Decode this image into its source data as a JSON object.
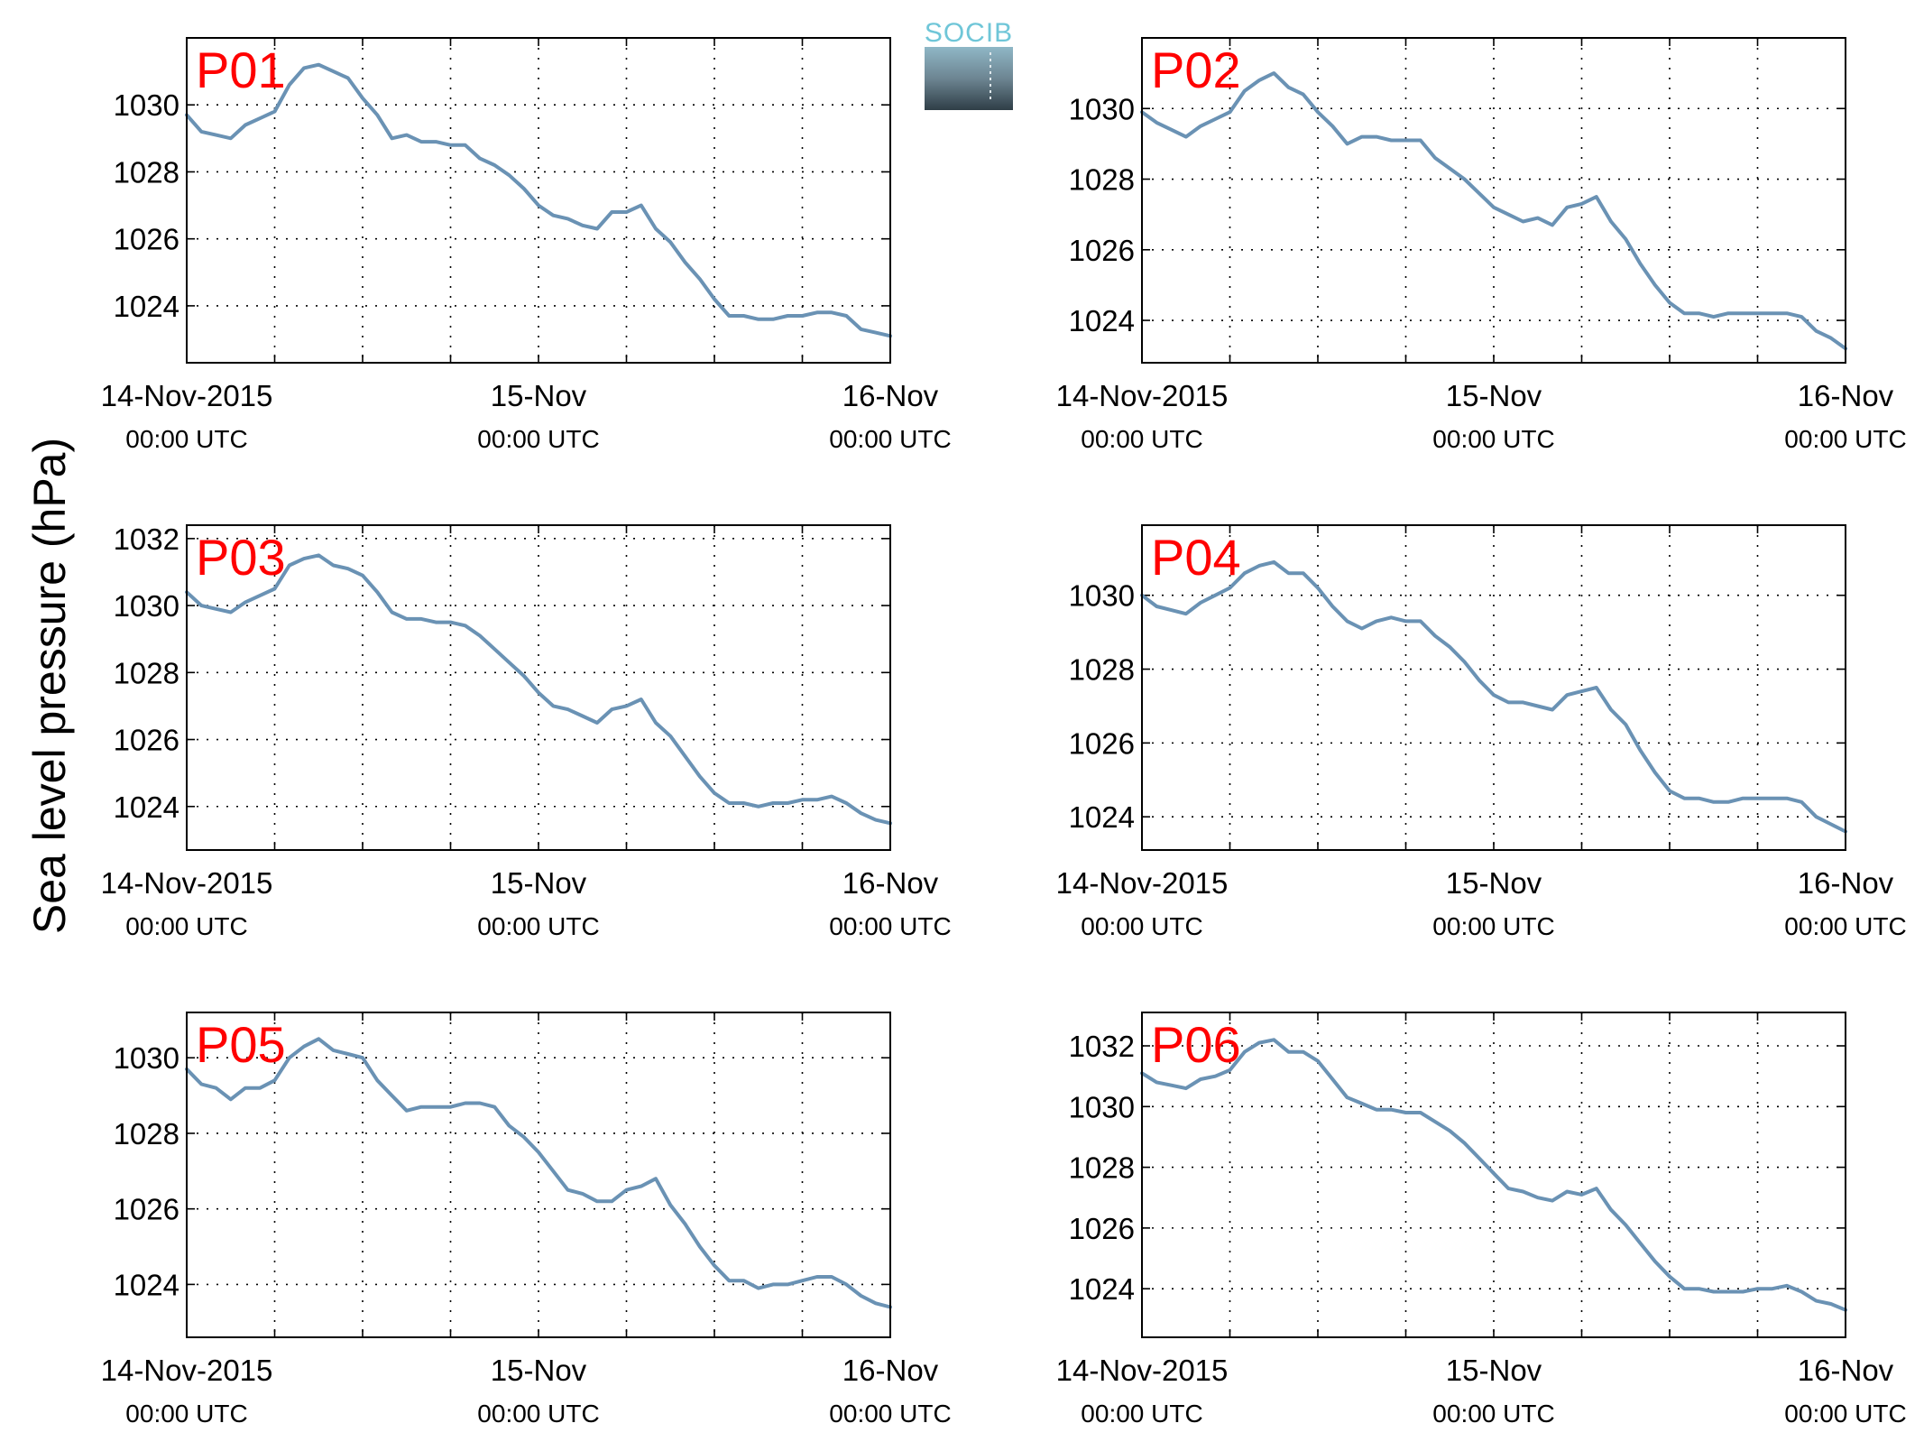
{
  "logo": {
    "text": "SOCIB"
  },
  "chart_data": {
    "type": "line",
    "ylabel": "Sea level pressure (hPa)",
    "x_ticks": [
      {
        "t": 0,
        "main": "14-Nov-2015",
        "sub": "00:00 UTC"
      },
      {
        "t": 24,
        "main": "15-Nov",
        "sub": "00:00 UTC"
      },
      {
        "t": 48,
        "main": "16-Nov",
        "sub": "00:00 UTC"
      }
    ],
    "x_range_hours": [
      0,
      48
    ],
    "x_grid_hours": [
      6,
      12,
      18,
      24,
      30,
      36,
      42
    ],
    "grid": true,
    "series_color": "#6a92b4",
    "label_color": "#ff0000",
    "panels": [
      {
        "label": "P01",
        "ylim": [
          1022.3,
          1032
        ],
        "yticks": [
          1024,
          1026,
          1028,
          1030
        ],
        "t": [
          0,
          1,
          2,
          3,
          4,
          5,
          6,
          7,
          8,
          9,
          10,
          11,
          12,
          13,
          14,
          15,
          16,
          17,
          18,
          19,
          20,
          21,
          22,
          23,
          24,
          25,
          26,
          27,
          28,
          29,
          30,
          31,
          32,
          33,
          34,
          35,
          36,
          37,
          38,
          39,
          40,
          41,
          42,
          43,
          44,
          45,
          46,
          47,
          48
        ],
        "values": [
          1029.7,
          1029.2,
          1029.1,
          1029.0,
          1029.4,
          1029.6,
          1029.8,
          1030.6,
          1031.1,
          1031.2,
          1031.0,
          1030.8,
          1030.2,
          1029.7,
          1029.0,
          1029.1,
          1028.9,
          1028.9,
          1028.8,
          1028.8,
          1028.4,
          1028.2,
          1027.9,
          1027.5,
          1027.0,
          1026.7,
          1026.6,
          1026.4,
          1026.3,
          1026.8,
          1026.8,
          1027.0,
          1026.3,
          1025.9,
          1025.3,
          1024.8,
          1024.2,
          1023.7,
          1023.7,
          1023.6,
          1023.6,
          1023.7,
          1023.7,
          1023.8,
          1023.8,
          1023.7,
          1023.3,
          1023.2,
          1023.1
        ]
      },
      {
        "label": "P02",
        "ylim": [
          1022.8,
          1032
        ],
        "yticks": [
          1024,
          1026,
          1028,
          1030
        ],
        "t": [
          0,
          1,
          2,
          3,
          4,
          5,
          6,
          7,
          8,
          9,
          10,
          11,
          12,
          13,
          14,
          15,
          16,
          17,
          18,
          19,
          20,
          21,
          22,
          23,
          24,
          25,
          26,
          27,
          28,
          29,
          30,
          31,
          32,
          33,
          34,
          35,
          36,
          37,
          38,
          39,
          40,
          41,
          42,
          43,
          44,
          45,
          46,
          47,
          48
        ],
        "values": [
          1029.9,
          1029.6,
          1029.4,
          1029.2,
          1029.5,
          1029.7,
          1029.9,
          1030.5,
          1030.8,
          1031.0,
          1030.6,
          1030.4,
          1029.9,
          1029.5,
          1029.0,
          1029.2,
          1029.2,
          1029.1,
          1029.1,
          1029.1,
          1028.6,
          1028.3,
          1028.0,
          1027.6,
          1027.2,
          1027.0,
          1026.8,
          1026.9,
          1026.7,
          1027.2,
          1027.3,
          1027.5,
          1026.8,
          1026.3,
          1025.6,
          1025.0,
          1024.5,
          1024.2,
          1024.2,
          1024.1,
          1024.2,
          1024.2,
          1024.2,
          1024.2,
          1024.2,
          1024.1,
          1023.7,
          1023.5,
          1023.2
        ]
      },
      {
        "label": "P03",
        "ylim": [
          1022.7,
          1032.4
        ],
        "yticks": [
          1024,
          1026,
          1028,
          1030,
          1032
        ],
        "t": [
          0,
          1,
          2,
          3,
          4,
          5,
          6,
          7,
          8,
          9,
          10,
          11,
          12,
          13,
          14,
          15,
          16,
          17,
          18,
          19,
          20,
          21,
          22,
          23,
          24,
          25,
          26,
          27,
          28,
          29,
          30,
          31,
          32,
          33,
          34,
          35,
          36,
          37,
          38,
          39,
          40,
          41,
          42,
          43,
          44,
          45,
          46,
          47,
          48
        ],
        "values": [
          1030.4,
          1030.0,
          1029.9,
          1029.8,
          1030.1,
          1030.3,
          1030.5,
          1031.2,
          1031.4,
          1031.5,
          1031.2,
          1031.1,
          1030.9,
          1030.4,
          1029.8,
          1029.6,
          1029.6,
          1029.5,
          1029.5,
          1029.4,
          1029.1,
          1028.7,
          1028.3,
          1027.9,
          1027.4,
          1027.0,
          1026.9,
          1026.7,
          1026.5,
          1026.9,
          1027.0,
          1027.2,
          1026.5,
          1026.1,
          1025.5,
          1024.9,
          1024.4,
          1024.1,
          1024.1,
          1024.0,
          1024.1,
          1024.1,
          1024.2,
          1024.2,
          1024.3,
          1024.1,
          1023.8,
          1023.6,
          1023.5
        ]
      },
      {
        "label": "P04",
        "ylim": [
          1023.1,
          1031.9
        ],
        "yticks": [
          1024,
          1026,
          1028,
          1030
        ],
        "t": [
          0,
          1,
          2,
          3,
          4,
          5,
          6,
          7,
          8,
          9,
          10,
          11,
          12,
          13,
          14,
          15,
          16,
          17,
          18,
          19,
          20,
          21,
          22,
          23,
          24,
          25,
          26,
          27,
          28,
          29,
          30,
          31,
          32,
          33,
          34,
          35,
          36,
          37,
          38,
          39,
          40,
          41,
          42,
          43,
          44,
          45,
          46,
          47,
          48
        ],
        "values": [
          1030.0,
          1029.7,
          1029.6,
          1029.5,
          1029.8,
          1030.0,
          1030.2,
          1030.6,
          1030.8,
          1030.9,
          1030.6,
          1030.6,
          1030.2,
          1029.7,
          1029.3,
          1029.1,
          1029.3,
          1029.4,
          1029.3,
          1029.3,
          1028.9,
          1028.6,
          1028.2,
          1027.7,
          1027.3,
          1027.1,
          1027.1,
          1027.0,
          1026.9,
          1027.3,
          1027.4,
          1027.5,
          1026.9,
          1026.5,
          1025.8,
          1025.2,
          1024.7,
          1024.5,
          1024.5,
          1024.4,
          1024.4,
          1024.5,
          1024.5,
          1024.5,
          1024.5,
          1024.4,
          1024.0,
          1023.8,
          1023.6
        ]
      },
      {
        "label": "P05",
        "ylim": [
          1022.6,
          1031.2
        ],
        "yticks": [
          1024,
          1026,
          1028,
          1030
        ],
        "t": [
          0,
          1,
          2,
          3,
          4,
          5,
          6,
          7,
          8,
          9,
          10,
          11,
          12,
          13,
          14,
          15,
          16,
          17,
          18,
          19,
          20,
          21,
          22,
          23,
          24,
          25,
          26,
          27,
          28,
          29,
          30,
          31,
          32,
          33,
          34,
          35,
          36,
          37,
          38,
          39,
          40,
          41,
          42,
          43,
          44,
          45,
          46,
          47,
          48
        ],
        "values": [
          1029.7,
          1029.3,
          1029.2,
          1028.9,
          1029.2,
          1029.2,
          1029.4,
          1030.0,
          1030.3,
          1030.5,
          1030.2,
          1030.1,
          1030.0,
          1029.4,
          1029.0,
          1028.6,
          1028.7,
          1028.7,
          1028.7,
          1028.8,
          1028.8,
          1028.7,
          1028.2,
          1027.9,
          1027.5,
          1027.0,
          1026.5,
          1026.4,
          1026.2,
          1026.2,
          1026.5,
          1026.6,
          1026.8,
          1026.1,
          1025.6,
          1025.0,
          1024.5,
          1024.1,
          1024.1,
          1023.9,
          1024.0,
          1024.0,
          1024.1,
          1024.2,
          1024.2,
          1024.0,
          1023.7,
          1023.5,
          1023.4
        ]
      },
      {
        "label": "P06",
        "ylim": [
          1022.4,
          1033.1
        ],
        "yticks": [
          1024,
          1026,
          1028,
          1030,
          1032
        ],
        "t": [
          0,
          1,
          2,
          3,
          4,
          5,
          6,
          7,
          8,
          9,
          10,
          11,
          12,
          13,
          14,
          15,
          16,
          17,
          18,
          19,
          20,
          21,
          22,
          23,
          24,
          25,
          26,
          27,
          28,
          29,
          30,
          31,
          32,
          33,
          34,
          35,
          36,
          37,
          38,
          39,
          40,
          41,
          42,
          43,
          44,
          45,
          46,
          47,
          48
        ],
        "values": [
          1031.1,
          1030.8,
          1030.7,
          1030.6,
          1030.9,
          1031.0,
          1031.2,
          1031.8,
          1032.1,
          1032.2,
          1031.8,
          1031.8,
          1031.5,
          1030.9,
          1030.3,
          1030.1,
          1029.9,
          1029.9,
          1029.8,
          1029.8,
          1029.5,
          1029.2,
          1028.8,
          1028.3,
          1027.8,
          1027.3,
          1027.2,
          1027.0,
          1026.9,
          1027.2,
          1027.1,
          1027.3,
          1026.6,
          1026.1,
          1025.5,
          1024.9,
          1024.4,
          1024.0,
          1024.0,
          1023.9,
          1023.9,
          1023.9,
          1024.0,
          1024.0,
          1024.1,
          1023.9,
          1023.6,
          1023.5,
          1023.3
        ]
      }
    ]
  }
}
